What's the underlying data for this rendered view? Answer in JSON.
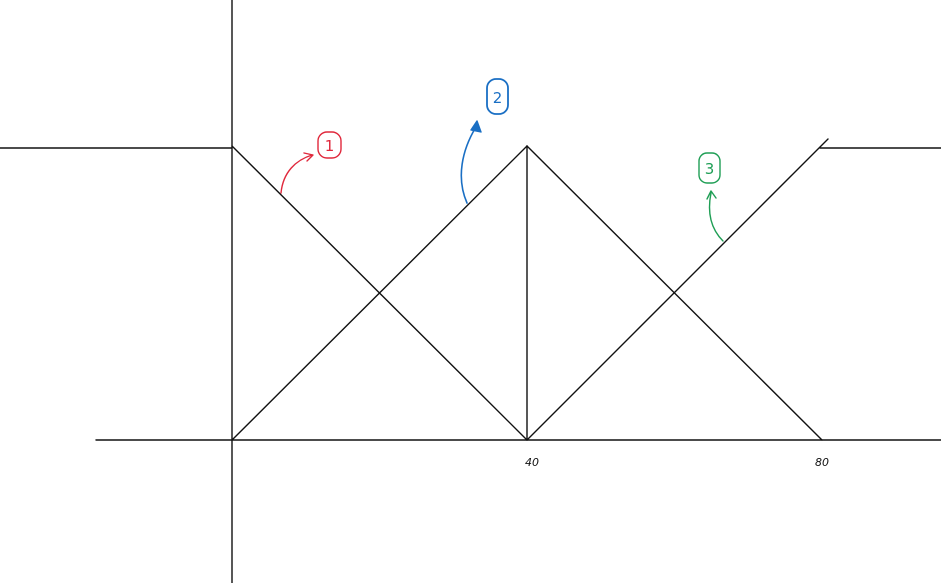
{
  "chart_data": {
    "type": "line",
    "x_tick_labels": [
      "40",
      "80"
    ],
    "grid": false,
    "legend": "none"
  },
  "annotations": [
    {
      "label": "1",
      "color": "#e0283c"
    },
    {
      "label": "2",
      "color": "#1a6fc4"
    },
    {
      "label": "3",
      "color": "#1f9e55"
    }
  ]
}
